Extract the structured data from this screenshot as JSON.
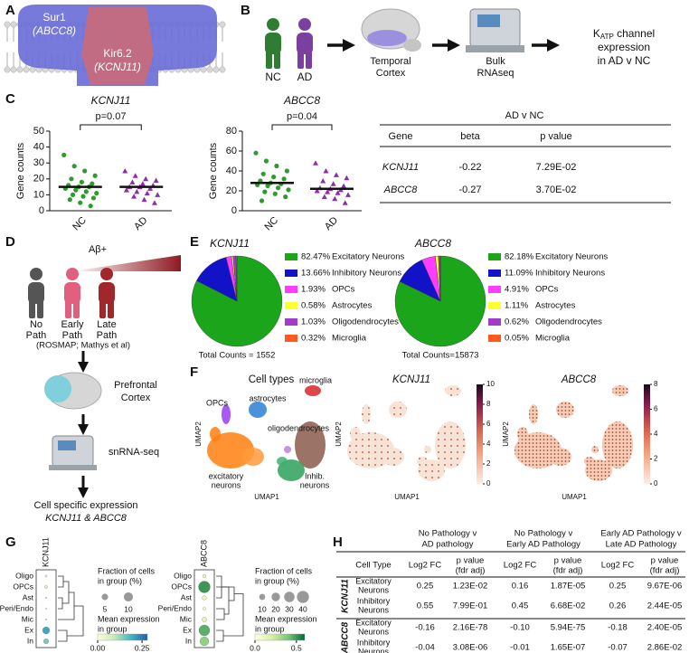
{
  "panel_labels": [
    "A",
    "B",
    "C",
    "D",
    "E",
    "F",
    "G",
    "H"
  ],
  "a": {
    "sur1": "Sur1",
    "sur1_gene": "(ABCC8)",
    "kir": "Kir6.2",
    "kir_gene": "(KCNJ11)"
  },
  "b": {
    "groups": [
      "NC",
      "AD"
    ],
    "tissue": [
      "Temporal",
      "Cortex"
    ],
    "method": [
      "Bulk",
      "RNAseq"
    ],
    "outcome": {
      "k": "K",
      "sub": "ATP",
      "rest": " channel",
      "lines": [
        "expression",
        "in AD v NC"
      ]
    }
  },
  "c_table": {
    "title": "AD v NC",
    "header": [
      "Gene",
      "beta",
      "p value"
    ],
    "rows": [
      [
        "KCNJ11",
        "-0.22",
        "7.29E-02"
      ],
      [
        "ABCC8",
        "-0.27",
        "3.70E-02"
      ]
    ]
  },
  "d": {
    "stimulus": "Aβ+",
    "stages": [
      [
        "No",
        "Path"
      ],
      [
        "Early",
        "Path"
      ],
      [
        "Late",
        "Path"
      ]
    ],
    "source": "(ROSMAP; Mathys et al)",
    "tissue": [
      "Prefrontal",
      "Cortex"
    ],
    "method": "snRNA-seq",
    "outcome": [
      "Cell specific expression",
      "KCNJ11 & ABCC8"
    ]
  },
  "h_table": {
    "groups": [
      [
        "No Pathology v",
        "AD pathology"
      ],
      [
        "No Pathology v",
        "Early AD Pathology"
      ],
      [
        "Early AD Pathology v",
        "Late AD Pathology"
      ]
    ],
    "header": [
      "Cell Type",
      "Log2 FC",
      [
        "p value",
        "(fdr adj)"
      ],
      "Log2 FC",
      [
        "p value",
        "(fdr adj)"
      ],
      "Log2 FC",
      [
        "p value",
        "(fdr adj)"
      ]
    ],
    "genes": [
      {
        "gene": "KCNJ11",
        "rows": [
          {
            "cell": [
              "Excitatory",
              "Neurons"
            ],
            "values": [
              "0.25",
              "1.23E-02",
              "0.16",
              "1.87E-05",
              "0.25",
              "9.67E-06"
            ]
          },
          {
            "cell": [
              "Inhibitory",
              "Neurons"
            ],
            "values": [
              "0.55",
              "7.99E-01",
              "0.45",
              "6.68E-02",
              "0.26",
              "2.44E-05"
            ]
          }
        ]
      },
      {
        "gene": "ABCC8",
        "rows": [
          {
            "cell": [
              "Excitatory",
              "Neurons"
            ],
            "values": [
              "-0.16",
              "2.16E-78",
              "-0.10",
              "5.94E-75",
              "-0.18",
              "2.40E-05"
            ]
          },
          {
            "cell": [
              "Inhibitory",
              "Neurons"
            ],
            "values": [
              "-0.04",
              "3.08E-06",
              "-0.01",
              "1.65E-07",
              "-0.07",
              "2.86E-02"
            ]
          }
        ]
      }
    ]
  },
  "chart_data": [
    {
      "type": "strip",
      "title": "KCNJ11",
      "annotation": "p=0.07",
      "ylabel": "Gene counts",
      "categories": [
        "NC",
        "AD"
      ],
      "values": [
        [
          35,
          28,
          25,
          22,
          20,
          18,
          17,
          16,
          15,
          15,
          14,
          13,
          12,
          11,
          10,
          9,
          8,
          7,
          5,
          3
        ],
        [
          25,
          22,
          20,
          19,
          18,
          17,
          16,
          15,
          15,
          14,
          13,
          12,
          11,
          10,
          9,
          7,
          5
        ]
      ],
      "medians": [
        15,
        15
      ],
      "colors": [
        "#2e9b2e",
        "#8d2ea8"
      ],
      "markers": [
        "circle",
        "triangle"
      ],
      "ylim": [
        0,
        50
      ],
      "yticks": [
        0,
        10,
        20,
        30,
        40,
        50
      ]
    },
    {
      "type": "strip",
      "title": "ABCC8",
      "annotation": "p=0.04",
      "ylabel": "Gene counts",
      "categories": [
        "NC",
        "AD"
      ],
      "values": [
        [
          58,
          50,
          45,
          40,
          37,
          34,
          32,
          30,
          28,
          27,
          26,
          25,
          23,
          21,
          19,
          17,
          14,
          10
        ],
        [
          48,
          40,
          36,
          33,
          30,
          27,
          25,
          23,
          22,
          21,
          20,
          19,
          18,
          16,
          14,
          12,
          8
        ]
      ],
      "medians": [
        28,
        22
      ],
      "colors": [
        "#2e9b2e",
        "#8d2ea8"
      ],
      "markers": [
        "circle",
        "triangle"
      ],
      "ylim": [
        0,
        80
      ],
      "yticks": [
        0,
        20,
        40,
        60,
        80
      ]
    },
    {
      "type": "pie",
      "title": "KCNJ11",
      "categories": [
        "Excitatory Neurons",
        "Inhibitory Neurons",
        "OPCs",
        "Astrocytes",
        "Oligodendrocytes",
        "Microglia"
      ],
      "values": [
        82.47,
        13.66,
        1.93,
        0.58,
        1.03,
        0.32
      ],
      "value_labels": [
        "82.47%",
        "13.66%",
        "1.93%",
        "0.58%",
        "1.03%",
        "0.32%"
      ],
      "colors": [
        "#1aa51a",
        "#1212c8",
        "#ff3cff",
        "#ffff33",
        "#a23cc8",
        "#ff5a1e"
      ],
      "annotation": "Total Counts = 1552"
    },
    {
      "type": "pie",
      "title": "ABCC8",
      "categories": [
        "Excitatory Neurons",
        "Inhibitory Neurons",
        "OPCs",
        "Astrocytes",
        "Oligodendrocytes",
        "Microglia"
      ],
      "values": [
        82.18,
        11.09,
        4.91,
        1.11,
        0.62,
        0.05
      ],
      "value_labels": [
        "82.18%",
        "11.09%",
        "4.91%",
        "1.11%",
        "0.62%",
        "0.05%"
      ],
      "colors": [
        "#1aa51a",
        "#1212c8",
        "#ff3cff",
        "#ffff33",
        "#a23cc8",
        "#ff5a1e"
      ],
      "annotation": "Total Counts=15873"
    },
    {
      "type": "umap",
      "title": "Cell types",
      "xlabel": "UMAP1",
      "ylabel": "UMAP2",
      "labels": [
        [
          "OPCs"
        ],
        [
          "astrocytes"
        ],
        [
          "microglia"
        ],
        [
          "oligodendrocytes"
        ],
        [
          "excitatory",
          "neurons"
        ],
        [
          "Inhib.",
          "neurons"
        ]
      ]
    },
    {
      "type": "umap",
      "title": "KCNJ11",
      "xlabel": "UMAP1",
      "ylabel": "UMAP2",
      "clim": [
        0,
        10
      ],
      "cticks": [
        0,
        2,
        4,
        6,
        8,
        10
      ]
    },
    {
      "type": "umap",
      "title": "ABCC8",
      "xlabel": "UMAP1",
      "ylabel": "UMAP2",
      "clim": [
        0,
        8
      ],
      "cticks": [
        0,
        2,
        4,
        6,
        8
      ]
    },
    {
      "type": "dotplot",
      "title": "KCNJ11",
      "categories": [
        "Oligo",
        "OPCs",
        "Ast",
        "Peri/Endo",
        "Mic",
        "Ex",
        "In"
      ],
      "fraction": [
        0.5,
        1,
        0.3,
        0.2,
        0.3,
        6,
        3
      ],
      "mean": [
        0.02,
        0.05,
        0.02,
        0.01,
        0.02,
        0.2,
        0.15
      ],
      "size_label": [
        "Fraction of cells",
        "in group (%)"
      ],
      "size_ticks": [
        5,
        10
      ],
      "color_label": [
        "Mean expression",
        "in group"
      ],
      "clim": [
        0,
        0.28
      ],
      "color_ticks": [
        {
          "value": 0,
          "label": "0.00"
        },
        0.25
      ],
      "colormap": [
        "#ffffd9",
        "#c7e9b4",
        "#41b6c4",
        "#225ea8"
      ]
    },
    {
      "type": "dotplot",
      "title": "ABCC8",
      "categories": [
        "Oligo",
        "OPCs",
        "Ast",
        "Peri/Endo",
        "Mic",
        "Ex",
        "In"
      ],
      "fraction": [
        3,
        38,
        5,
        2,
        6,
        32,
        22
      ],
      "mean": [
        0.1,
        0.5,
        0.1,
        0.05,
        0.15,
        0.45,
        0.35
      ],
      "size_label": [
        "Fraction of cells",
        "in group (%)"
      ],
      "size_ticks": [
        10,
        20,
        30,
        40
      ],
      "color_label": [
        "Mean expression",
        "in group"
      ],
      "clim": [
        0,
        0.6
      ],
      "color_ticks": [
        {
          "value": 0,
          "label": "0.0"
        },
        0.5
      ],
      "colormap": [
        "#ffffe5",
        "#d9f0a3",
        "#78c679",
        "#006837"
      ]
    }
  ]
}
